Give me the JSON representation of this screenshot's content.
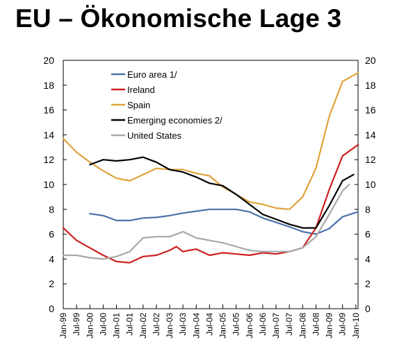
{
  "title": "EU – Ökonomische Lage 3",
  "chart_data": {
    "type": "line",
    "title": "",
    "xlabel": "",
    "ylabel": "",
    "ylim": [
      0,
      20
    ],
    "yticks": [
      "0",
      "2",
      "4",
      "6",
      "8",
      "10",
      "12",
      "14",
      "16",
      "18",
      "20"
    ],
    "xticks": [
      "Jan-99",
      "Jul-99",
      "Jan-00",
      "Jul-00",
      "Jan-01",
      "Jul-01",
      "Jan-02",
      "Jul-02",
      "Jan-03",
      "Jul-03",
      "Jan-04",
      "Jul-04",
      "Jan-05",
      "Jul-05",
      "Jan-06",
      "Jul-06",
      "Jan-07",
      "Jul-07",
      "Jan-08",
      "Jul-08",
      "Jan-09",
      "Jul-09",
      "Jan-10"
    ],
    "x_start": "1999-01",
    "x_end": "2010-02",
    "grid": false,
    "legend_position": "top-left",
    "series": [
      {
        "name": "Euro area 1/",
        "color": "#4a72a8",
        "points": [
          [
            "2000-01",
            7.65
          ],
          [
            "2000-07",
            7.5
          ],
          [
            "2001-01",
            7.1
          ],
          [
            "2001-07",
            7.1
          ],
          [
            "2002-01",
            7.3
          ],
          [
            "2002-07",
            7.35
          ],
          [
            "2003-01",
            7.5
          ],
          [
            "2003-07",
            7.7
          ],
          [
            "2004-01",
            7.85
          ],
          [
            "2004-07",
            8.0
          ],
          [
            "2005-01",
            8.0
          ],
          [
            "2005-07",
            8.0
          ],
          [
            "2006-01",
            7.8
          ],
          [
            "2006-07",
            7.3
          ],
          [
            "2007-01",
            6.95
          ],
          [
            "2007-07",
            6.6
          ],
          [
            "2008-01",
            6.2
          ],
          [
            "2008-07",
            6.0
          ],
          [
            "2009-01",
            6.45
          ],
          [
            "2009-07",
            7.4
          ],
          [
            "2010-02",
            7.8
          ]
        ]
      },
      {
        "name": "Ireland",
        "color": "#cc1f1f",
        "points": [
          [
            "1999-01",
            6.5
          ],
          [
            "1999-07",
            5.5
          ],
          [
            "2000-01",
            4.9
          ],
          [
            "2000-07",
            4.3
          ],
          [
            "2001-01",
            3.8
          ],
          [
            "2001-07",
            3.7
          ],
          [
            "2002-01",
            4.2
          ],
          [
            "2002-07",
            4.3
          ],
          [
            "2003-01",
            4.7
          ],
          [
            "2003-04",
            5.0
          ],
          [
            "2003-07",
            4.6
          ],
          [
            "2004-01",
            4.8
          ],
          [
            "2004-07",
            4.3
          ],
          [
            "2005-01",
            4.5
          ],
          [
            "2005-07",
            4.4
          ],
          [
            "2006-01",
            4.3
          ],
          [
            "2006-07",
            4.5
          ],
          [
            "2007-01",
            4.4
          ],
          [
            "2007-07",
            4.6
          ],
          [
            "2008-01",
            4.9
          ],
          [
            "2008-07",
            6.5
          ],
          [
            "2009-01",
            9.6
          ],
          [
            "2009-07",
            12.3
          ],
          [
            "2010-02",
            13.2
          ]
        ]
      },
      {
        "name": "Spain",
        "color": "#e0a33a",
        "points": [
          [
            "1999-01",
            13.7
          ],
          [
            "1999-07",
            12.6
          ],
          [
            "2000-01",
            11.8
          ],
          [
            "2000-07",
            11.1
          ],
          [
            "2001-01",
            10.5
          ],
          [
            "2001-07",
            10.3
          ],
          [
            "2002-01",
            10.8
          ],
          [
            "2002-07",
            11.3
          ],
          [
            "2003-01",
            11.2
          ],
          [
            "2003-07",
            11.2
          ],
          [
            "2004-01",
            10.9
          ],
          [
            "2004-07",
            10.7
          ],
          [
            "2005-01",
            9.8
          ],
          [
            "2005-07",
            9.2
          ],
          [
            "2006-01",
            8.6
          ],
          [
            "2006-07",
            8.4
          ],
          [
            "2007-01",
            8.1
          ],
          [
            "2007-07",
            8.0
          ],
          [
            "2008-01",
            9.0
          ],
          [
            "2008-07",
            11.3
          ],
          [
            "2009-01",
            15.5
          ],
          [
            "2009-07",
            18.3
          ],
          [
            "2010-02",
            19.0
          ]
        ]
      },
      {
        "name": "Emerging economies 2/",
        "color": "#000000",
        "points": [
          [
            "2000-01",
            11.6
          ],
          [
            "2000-07",
            12.0
          ],
          [
            "2001-01",
            11.9
          ],
          [
            "2001-07",
            12.0
          ],
          [
            "2002-01",
            12.2
          ],
          [
            "2002-07",
            11.8
          ],
          [
            "2003-01",
            11.2
          ],
          [
            "2003-07",
            11.0
          ],
          [
            "2004-01",
            10.6
          ],
          [
            "2004-07",
            10.1
          ],
          [
            "2005-01",
            9.9
          ],
          [
            "2005-07",
            9.2
          ],
          [
            "2006-01",
            8.4
          ],
          [
            "2006-07",
            7.6
          ],
          [
            "2007-01",
            7.2
          ],
          [
            "2007-07",
            6.8
          ],
          [
            "2008-01",
            6.5
          ],
          [
            "2008-07",
            6.5
          ],
          [
            "2009-01",
            8.3
          ],
          [
            "2009-07",
            10.3
          ],
          [
            "2009-12",
            10.8
          ]
        ]
      },
      {
        "name": "United States",
        "color": "#a8a8a8",
        "points": [
          [
            "1999-01",
            4.3
          ],
          [
            "1999-07",
            4.3
          ],
          [
            "2000-01",
            4.1
          ],
          [
            "2000-07",
            4.0
          ],
          [
            "2001-01",
            4.2
          ],
          [
            "2001-07",
            4.6
          ],
          [
            "2002-01",
            5.7
          ],
          [
            "2002-07",
            5.8
          ],
          [
            "2003-01",
            5.8
          ],
          [
            "2003-07",
            6.2
          ],
          [
            "2004-01",
            5.7
          ],
          [
            "2004-07",
            5.5
          ],
          [
            "2005-01",
            5.3
          ],
          [
            "2005-07",
            5.0
          ],
          [
            "2006-01",
            4.7
          ],
          [
            "2006-07",
            4.6
          ],
          [
            "2007-01",
            4.6
          ],
          [
            "2007-07",
            4.6
          ],
          [
            "2008-01",
            4.9
          ],
          [
            "2008-07",
            5.8
          ],
          [
            "2009-01",
            7.6
          ],
          [
            "2009-07",
            9.5
          ],
          [
            "2009-10",
            10.0
          ]
        ]
      }
    ]
  }
}
